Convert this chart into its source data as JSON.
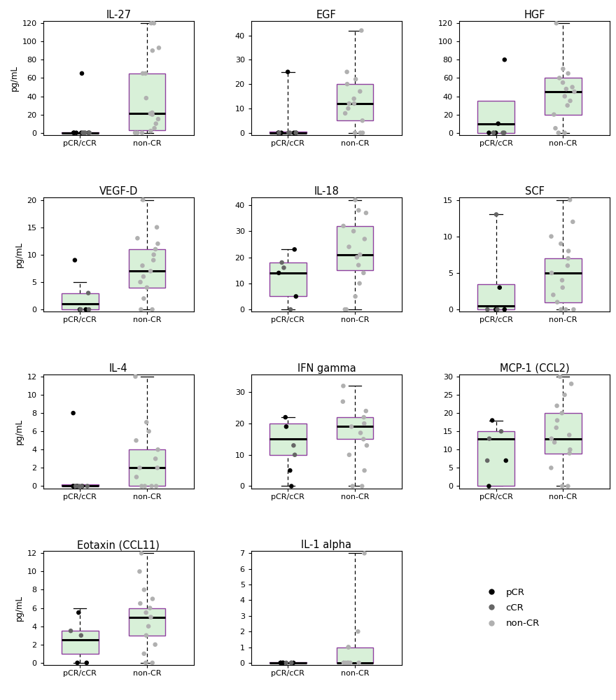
{
  "panels": [
    {
      "title": "IL-27",
      "ylim": [
        0,
        120
      ],
      "yticks": [
        0,
        20,
        40,
        60,
        80,
        100,
        120
      ],
      "g1_box": {
        "q1": 0,
        "median": 0,
        "q3": 0.5,
        "whislo": 0,
        "whishi": 0
      },
      "g1_pcr": [
        0,
        0,
        0,
        0,
        0,
        65
      ],
      "g1_ccr": [
        0,
        0,
        0,
        0,
        0,
        0
      ],
      "g2_box": {
        "q1": 3,
        "median": 21,
        "q3": 65,
        "whislo": 0,
        "whishi": 120
      },
      "g2_ncr": [
        0,
        0,
        0,
        2,
        5,
        10,
        15,
        20,
        21,
        22,
        38,
        65,
        65,
        90,
        93,
        120,
        120
      ]
    },
    {
      "title": "EGF",
      "ylim": [
        0,
        45
      ],
      "yticks": [
        0,
        10,
        20,
        30,
        40
      ],
      "g1_box": {
        "q1": 0,
        "median": 0,
        "q3": 0.5,
        "whislo": 0,
        "whishi": 25
      },
      "g1_pcr": [
        0,
        0,
        0,
        0,
        0,
        25
      ],
      "g1_ccr": [
        0,
        0,
        0,
        0
      ],
      "g2_box": {
        "q1": 5,
        "median": 12,
        "q3": 20,
        "whislo": 0,
        "whishi": 42
      },
      "g2_ncr": [
        0,
        0,
        0,
        5,
        8,
        10,
        12,
        12,
        14,
        17,
        20,
        22,
        25,
        42
      ]
    },
    {
      "title": "HGF",
      "ylim": [
        0,
        120
      ],
      "yticks": [
        0,
        20,
        40,
        60,
        80,
        100,
        120
      ],
      "g1_box": {
        "q1": 0,
        "median": 10,
        "q3": 35,
        "whislo": 0,
        "whishi": 0
      },
      "g1_pcr": [
        80,
        10,
        0,
        0
      ],
      "g1_ccr": [
        0,
        0,
        0,
        0
      ],
      "g2_box": {
        "q1": 20,
        "median": 45,
        "q3": 60,
        "whislo": 0,
        "whishi": 120
      },
      "g2_ncr": [
        0,
        0,
        5,
        20,
        30,
        35,
        40,
        45,
        48,
        50,
        55,
        60,
        65,
        70,
        120
      ]
    },
    {
      "title": "VEGF-D",
      "ylim": [
        0,
        20
      ],
      "yticks": [
        0,
        5,
        10,
        15,
        20
      ],
      "g1_box": {
        "q1": 0,
        "median": 1,
        "q3": 3,
        "whislo": 0,
        "whishi": 5
      },
      "g1_pcr": [
        9,
        0,
        0
      ],
      "g1_ccr": [
        3,
        0,
        0
      ],
      "g2_box": {
        "q1": 4,
        "median": 7,
        "q3": 11,
        "whislo": 0,
        "whishi": 20
      },
      "g2_ncr": [
        0,
        0,
        2,
        4,
        5,
        6,
        7,
        8,
        9,
        10,
        11,
        12,
        13,
        15,
        20
      ]
    },
    {
      "title": "IL-18",
      "ylim": [
        0,
        42
      ],
      "yticks": [
        0,
        10,
        20,
        30,
        40
      ],
      "g1_box": {
        "q1": 5,
        "median": 14,
        "q3": 18,
        "whislo": 0,
        "whishi": 23
      },
      "g1_pcr": [
        23,
        5,
        14
      ],
      "g1_ccr": [
        18,
        16,
        0
      ],
      "g2_box": {
        "q1": 15,
        "median": 21,
        "q3": 32,
        "whislo": 0,
        "whishi": 42
      },
      "g2_ncr": [
        0,
        0,
        5,
        10,
        14,
        17,
        20,
        21,
        24,
        27,
        30,
        32,
        37,
        38,
        42
      ]
    },
    {
      "title": "SCF",
      "ylim": [
        0,
        15
      ],
      "yticks": [
        0,
        5,
        10,
        15
      ],
      "g1_box": {
        "q1": 0,
        "median": 0.5,
        "q3": 3.5,
        "whislo": 0,
        "whishi": 13
      },
      "g1_pcr": [
        3,
        0,
        0
      ],
      "g1_ccr": [
        13,
        0,
        0
      ],
      "g2_box": {
        "q1": 1,
        "median": 5,
        "q3": 7,
        "whislo": 0,
        "whishi": 15
      },
      "g2_ncr": [
        0,
        0,
        0,
        1,
        2,
        3,
        4,
        5,
        6,
        7,
        8,
        9,
        10,
        12,
        15
      ]
    },
    {
      "title": "IL-4",
      "ylim": [
        0,
        12
      ],
      "yticks": [
        0,
        2,
        4,
        6,
        8,
        10,
        12
      ],
      "g1_box": {
        "q1": 0,
        "median": 0,
        "q3": 0.2,
        "whislo": 0,
        "whishi": 0
      },
      "g1_pcr": [
        8,
        0,
        0,
        0,
        0,
        0
      ],
      "g1_ccr": [
        0,
        0,
        0,
        0
      ],
      "g2_box": {
        "q1": 0,
        "median": 2,
        "q3": 4,
        "whislo": 0,
        "whishi": 12
      },
      "g2_ncr": [
        0,
        0,
        0,
        0,
        1,
        2,
        2,
        3,
        4,
        5,
        6,
        7,
        12
      ]
    },
    {
      "title": "IFN gamma",
      "ylim": [
        0,
        35
      ],
      "yticks": [
        0,
        10,
        20,
        30
      ],
      "g1_box": {
        "q1": 10,
        "median": 15,
        "q3": 20,
        "whislo": 0,
        "whishi": 22
      },
      "g1_pcr": [
        22,
        19,
        5,
        0
      ],
      "g1_ccr": [
        10,
        13
      ],
      "g2_box": {
        "q1": 15,
        "median": 19,
        "q3": 22,
        "whislo": 0,
        "whishi": 32
      },
      "g2_ncr": [
        0,
        0,
        5,
        10,
        13,
        15,
        17,
        19,
        20,
        22,
        24,
        27,
        32
      ]
    },
    {
      "title": "MCP-1 (CCL2)",
      "ylim": [
        0,
        30
      ],
      "yticks": [
        0,
        5,
        10,
        15,
        20,
        25,
        30
      ],
      "g1_box": {
        "q1": 0,
        "median": 13,
        "q3": 15,
        "whislo": 0,
        "whishi": 18
      },
      "g1_pcr": [
        18,
        7,
        0
      ],
      "g1_ccr": [
        13,
        15,
        7
      ],
      "g2_box": {
        "q1": 9,
        "median": 13,
        "q3": 20,
        "whislo": 0,
        "whishi": 30
      },
      "g2_ncr": [
        0,
        0,
        5,
        9,
        10,
        12,
        13,
        14,
        16,
        18,
        20,
        22,
        25,
        28,
        30
      ]
    },
    {
      "title": "Eotaxin (CCL11)",
      "ylim": [
        0,
        12
      ],
      "yticks": [
        0,
        2,
        4,
        6,
        8,
        10,
        12
      ],
      "g1_box": {
        "q1": 1,
        "median": 2.5,
        "q3": 3.5,
        "whislo": 0,
        "whishi": 6
      },
      "g1_pcr": [
        5.5,
        0,
        0
      ],
      "g1_ccr": [
        3.5,
        3.0
      ],
      "g2_box": {
        "q1": 3,
        "median": 5,
        "q3": 6,
        "whislo": 0,
        "whishi": 12
      },
      "g2_ncr": [
        0,
        0,
        1,
        2,
        3,
        4,
        5,
        5.5,
        6,
        6.5,
        7,
        8,
        10,
        12
      ]
    },
    {
      "title": "IL-1 alpha",
      "ylim": [
        0,
        7
      ],
      "yticks": [
        0,
        1,
        2,
        3,
        4,
        5,
        6,
        7
      ],
      "g1_box": {
        "q1": 0,
        "median": 0,
        "q3": 0.05,
        "whislo": 0,
        "whishi": 0
      },
      "g1_pcr": [
        0,
        0,
        0,
        0,
        0
      ],
      "g1_ccr": [
        0,
        0,
        0
      ],
      "g2_box": {
        "q1": 0,
        "median": 0,
        "q3": 1,
        "whislo": 0,
        "whishi": 7
      },
      "g2_ncr": [
        0,
        0,
        0,
        0,
        0,
        0,
        0,
        1,
        1,
        2,
        7
      ]
    }
  ],
  "colors": {
    "pcr": "#000000",
    "ccr": "#666666",
    "non_cr": "#b0b0b0",
    "box_face": "#d8f0d8",
    "box_edge": "#9040a0",
    "median_line": "#000000"
  },
  "ylabel": "pg/mL",
  "nrows": 4,
  "ncols": 3
}
